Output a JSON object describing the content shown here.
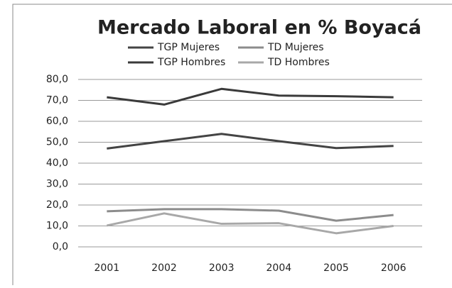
{
  "chart_data": {
    "type": "line",
    "title": "Mercado Laboral en % Boyacá",
    "categories": [
      "2001",
      "2002",
      "2003",
      "2004",
      "2005",
      "2006"
    ],
    "series": [
      {
        "name": "TGP Mujeres",
        "color": "#444444",
        "values": [
          47.0,
          50.5,
          54.0,
          50.5,
          47.2,
          48.2
        ]
      },
      {
        "name": "TD Mujeres",
        "color": "#8c8c8c",
        "values": [
          17.0,
          18.0,
          18.0,
          17.3,
          12.5,
          15.2
        ]
      },
      {
        "name": "TGP Hombres",
        "color": "#3a3a3a",
        "values": [
          71.5,
          68.0,
          75.5,
          72.3,
          72.0,
          71.5
        ]
      },
      {
        "name": "TD Hombres",
        "color": "#a8a8a8",
        "values": [
          10.2,
          16.0,
          11.0,
          11.3,
          6.5,
          10.0
        ]
      }
    ],
    "ylim": [
      0,
      80
    ],
    "yticks": [
      {
        "value": 0,
        "label": "0,0"
      },
      {
        "value": 10,
        "label": "10,0"
      },
      {
        "value": 20,
        "label": "20,0"
      },
      {
        "value": 30,
        "label": "30,0"
      },
      {
        "value": 40,
        "label": "40,0"
      },
      {
        "value": 50,
        "label": "50,0"
      },
      {
        "value": 60,
        "label": "60,0"
      },
      {
        "value": 70,
        "label": "70,0"
      },
      {
        "value": 80,
        "label": "80,0"
      }
    ],
    "grid": true
  }
}
